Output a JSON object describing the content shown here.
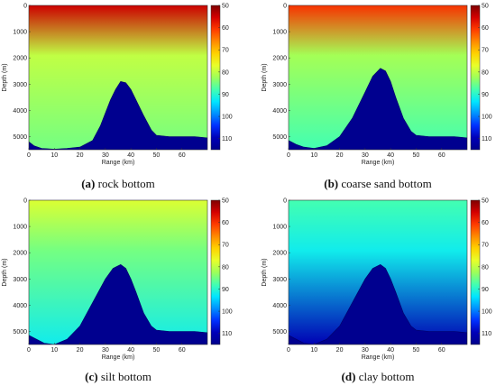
{
  "figure": {
    "colormap": [
      "#7f0000",
      "#d40000",
      "#ff3b00",
      "#ff8a00",
      "#ffd200",
      "#e8ff2a",
      "#9dff5a",
      "#44ffb0",
      "#00e6ff",
      "#0090ff",
      "#0030ff",
      "#0000b8",
      "#00008a"
    ],
    "background_low": "#00008f",
    "background_high": "#ffffff"
  },
  "chart_data": [
    {
      "type": "heatmap",
      "panel_label": "(a)",
      "caption": "rock bottom",
      "xlabel": "Range (km)",
      "ylabel": "Depth (m)",
      "xlim": [
        0,
        70
      ],
      "ylim": [
        0,
        5500
      ],
      "x_ticks": [
        "0",
        "10",
        "20",
        "30",
        "40",
        "50",
        "60"
      ],
      "y_ticks": [
        "0",
        "1000",
        "2000",
        "3000",
        "4000",
        "5000"
      ],
      "colorbar_ticks": [
        "50",
        "60",
        "70",
        "80",
        "90",
        "100",
        "110"
      ],
      "colorbar_range": [
        50,
        115
      ],
      "bathymetry_x": [
        0,
        2,
        5,
        10,
        15,
        20,
        25,
        28,
        32,
        34,
        36,
        38,
        40,
        42,
        45,
        48,
        50,
        55,
        60,
        65,
        70
      ],
      "bathymetry_y": [
        5200,
        5350,
        5450,
        5480,
        5450,
        5400,
        5150,
        4600,
        3600,
        3200,
        2900,
        2950,
        3200,
        3600,
        4200,
        4750,
        4950,
        5000,
        5000,
        5000,
        5050
      ],
      "surface_level": 55,
      "shallow_level": 80,
      "deep_level": 85
    },
    {
      "type": "heatmap",
      "panel_label": "(b)",
      "caption": "coarse sand bottom",
      "xlabel": "Range (km)",
      "ylabel": "Depth (m)",
      "xlim": [
        0,
        70
      ],
      "ylim": [
        0,
        5500
      ],
      "x_ticks": [
        "0",
        "10",
        "20",
        "30",
        "40",
        "50",
        "60"
      ],
      "y_ticks": [
        "0",
        "1000",
        "2000",
        "3000",
        "4000",
        "5000"
      ],
      "colorbar_ticks": [
        "50",
        "60",
        "70",
        "80",
        "90",
        "100",
        "110"
      ],
      "colorbar_range": [
        50,
        115
      ],
      "bathymetry_x": [
        0,
        3,
        6,
        10,
        15,
        20,
        25,
        30,
        33,
        36,
        38,
        40,
        42,
        45,
        48,
        50,
        55,
        60,
        65,
        70
      ],
      "bathymetry_y": [
        5150,
        5300,
        5400,
        5450,
        5350,
        5000,
        4300,
        3300,
        2700,
        2400,
        2500,
        2900,
        3500,
        4300,
        4800,
        4950,
        5000,
        5000,
        5000,
        5050
      ],
      "surface_level": 60,
      "shallow_level": 82,
      "deep_level": 88
    },
    {
      "type": "heatmap",
      "panel_label": "(c)",
      "caption": "silt bottom",
      "xlabel": "Range (km)",
      "ylabel": "Depth (m)",
      "xlim": [
        0,
        70
      ],
      "ylim": [
        0,
        5500
      ],
      "x_ticks": [
        "0",
        "10",
        "20",
        "30",
        "40",
        "50",
        "60"
      ],
      "y_ticks": [
        "0",
        "1000",
        "2000",
        "3000",
        "4000",
        "5000"
      ],
      "colorbar_ticks": [
        "50",
        "60",
        "70",
        "80",
        "90",
        "100",
        "110"
      ],
      "colorbar_range": [
        50,
        115
      ],
      "bathymetry_x": [
        0,
        3,
        6,
        10,
        15,
        20,
        25,
        30,
        33,
        36,
        38,
        40,
        42,
        45,
        48,
        50,
        55,
        60,
        65,
        70
      ],
      "bathymetry_y": [
        5150,
        5300,
        5450,
        5500,
        5300,
        4800,
        3900,
        3000,
        2600,
        2450,
        2600,
        3000,
        3500,
        4300,
        4800,
        4950,
        5000,
        5000,
        5000,
        5050
      ],
      "surface_level": 78,
      "shallow_level": 85,
      "deep_level": 92
    },
    {
      "type": "heatmap",
      "panel_label": "(d)",
      "caption": "clay bottom",
      "xlabel": "Range (km)",
      "ylabel": "Depth (m)",
      "xlim": [
        0,
        70
      ],
      "ylim": [
        0,
        5500
      ],
      "x_ticks": [
        "0",
        "10",
        "20",
        "30",
        "40",
        "50",
        "60"
      ],
      "y_ticks": [
        "0",
        "1000",
        "2000",
        "3000",
        "4000",
        "5000"
      ],
      "colorbar_ticks": [
        "50",
        "60",
        "70",
        "80",
        "90",
        "100",
        "110"
      ],
      "colorbar_range": [
        50,
        115
      ],
      "bathymetry_x": [
        0,
        3,
        6,
        10,
        15,
        20,
        25,
        30,
        33,
        36,
        38,
        40,
        42,
        45,
        48,
        50,
        55,
        60,
        65,
        70
      ],
      "bathymetry_y": [
        5150,
        5300,
        5450,
        5500,
        5300,
        4800,
        3900,
        3000,
        2600,
        2450,
        2600,
        3000,
        3500,
        4300,
        4800,
        4950,
        5000,
        5000,
        5000,
        5050
      ],
      "surface_level": 88,
      "shallow_level": 92,
      "deep_level": 110
    }
  ]
}
